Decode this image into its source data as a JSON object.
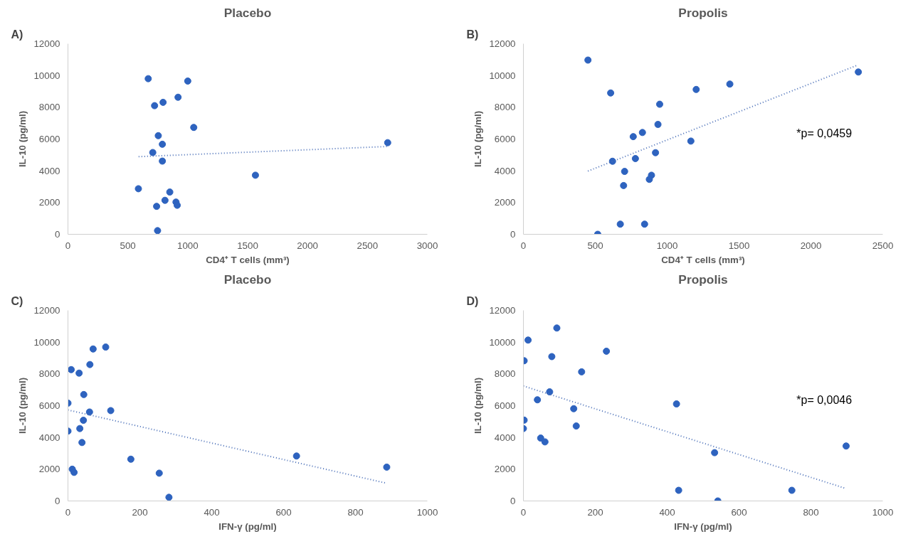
{
  "chart_data": [
    {
      "type": "scatter",
      "title": "Placebo",
      "xlabel": "CD4⁺ T cells (mm³)",
      "ylabel": "IL-10 (pg/ml)",
      "annotations": [
        "A)"
      ],
      "marker": "circle",
      "grid": false,
      "xlim": [
        0,
        3000
      ],
      "xticks": [
        0,
        500,
        1000,
        1500,
        2000,
        2500,
        3000
      ],
      "ylim": [
        0,
        12000
      ],
      "yticks": [
        0,
        2000,
        4000,
        6000,
        8000,
        10000,
        12000
      ],
      "series": [
        {
          "color": "#2e63bf",
          "x": [
            670,
            1000,
            919,
            794,
            723,
            1050,
            754,
            788,
            708,
            788,
            1565,
            588,
            850,
            810,
            902,
            912,
            740,
            748,
            2669
          ],
          "values": [
            9800,
            9650,
            8630,
            8310,
            8100,
            6730,
            6210,
            5670,
            5150,
            4610,
            3720,
            2870,
            2660,
            2140,
            2030,
            1830,
            1760,
            230,
            5770
          ]
        },
        {
          "type": "line",
          "marker": "none",
          "color": "#4a6fb8",
          "line_style": "dotted",
          "x": [
            590,
            2669
          ],
          "values": [
            4890,
            5530
          ]
        }
      ]
    },
    {
      "type": "scatter",
      "title": "Propolis",
      "xlabel": "CD4⁺ T cells (mm³)",
      "ylabel": "IL-10 (pg/ml)",
      "annotations": [
        "B)",
        "*p= 0,0459"
      ],
      "marker": "circle",
      "grid": false,
      "xlim": [
        0,
        2500
      ],
      "xticks": [
        0,
        500,
        1000,
        1500,
        2000,
        2500
      ],
      "ylim": [
        0,
        12000
      ],
      "yticks": [
        0,
        2000,
        4000,
        6000,
        8000,
        10000,
        12000
      ],
      "series": [
        {
          "color": "#2e63bf",
          "x": [
            449,
            607,
            1202,
            1436,
            2330,
            948,
            936,
            828,
            764,
            1165,
            919,
            620,
            779,
            704,
            891,
            876,
            697,
            674,
            843,
            517
          ],
          "values": [
            10970,
            8900,
            9120,
            9460,
            10220,
            8190,
            6920,
            6410,
            6150,
            5870,
            5140,
            4600,
            4770,
            3960,
            3720,
            3460,
            3070,
            640,
            640,
            0
          ]
        },
        {
          "type": "line",
          "marker": "none",
          "color": "#4a6fb8",
          "line_style": "dotted",
          "x": [
            449,
            2324
          ],
          "values": [
            3980,
            10650
          ]
        }
      ]
    },
    {
      "type": "scatter",
      "title": "Placebo",
      "xlabel": "IFN-γ (pg/ml)",
      "ylabel": "IL-10 (pg/ml)",
      "annotations": [
        "C)"
      ],
      "marker": "circle",
      "grid": false,
      "xlim": [
        0,
        1000
      ],
      "xticks": [
        0,
        200,
        400,
        600,
        800,
        1000
      ],
      "ylim": [
        0,
        12000
      ],
      "yticks": [
        0,
        2000,
        4000,
        6000,
        8000,
        10000,
        12000
      ],
      "series": [
        {
          "color": "#2e63bf",
          "x": [
            0,
            0,
            9,
            31,
            70,
            105,
            61,
            44,
            60,
            119,
            43,
            33,
            39,
            175,
            12,
            17,
            254,
            281,
            636,
            887
          ],
          "values": [
            6160,
            4400,
            8270,
            8050,
            9570,
            9690,
            8590,
            6700,
            5600,
            5690,
            5080,
            4560,
            3680,
            2630,
            2000,
            1800,
            1750,
            230,
            2830,
            2130
          ]
        },
        {
          "type": "line",
          "marker": "none",
          "color": "#4a6fb8",
          "line_style": "dotted",
          "x": [
            0,
            882
          ],
          "values": [
            5730,
            1140
          ]
        }
      ]
    },
    {
      "type": "scatter",
      "title": "Propolis",
      "xlabel": "IFN-γ (pg/ml)",
      "ylabel": "IL-10 (pg/ml)",
      "annotations": [
        "D)",
        "*p= 0,0046"
      ],
      "marker": "circle",
      "grid": false,
      "xlim": [
        0,
        1000
      ],
      "xticks": [
        0,
        200,
        400,
        600,
        800,
        1000
      ],
      "ylim": [
        0,
        12000
      ],
      "yticks": [
        0,
        2000,
        4000,
        6000,
        8000,
        10000,
        12000
      ],
      "series": [
        {
          "color": "#2e63bf",
          "x": [
            93,
            13,
            2,
            79,
            231,
            162,
            73,
            39,
            140,
            426,
            2,
            0,
            147,
            48,
            60,
            532,
            898,
            432,
            747,
            541
          ],
          "values": [
            10890,
            10130,
            8830,
            9090,
            9430,
            8130,
            6870,
            6370,
            5810,
            6110,
            5090,
            4560,
            4720,
            3960,
            3720,
            3040,
            3460,
            670,
            670,
            0
          ]
        },
        {
          "type": "line",
          "marker": "none",
          "color": "#4a6fb8",
          "line_style": "dotted",
          "x": [
            0,
            898
          ],
          "values": [
            7240,
            780
          ]
        }
      ]
    }
  ]
}
